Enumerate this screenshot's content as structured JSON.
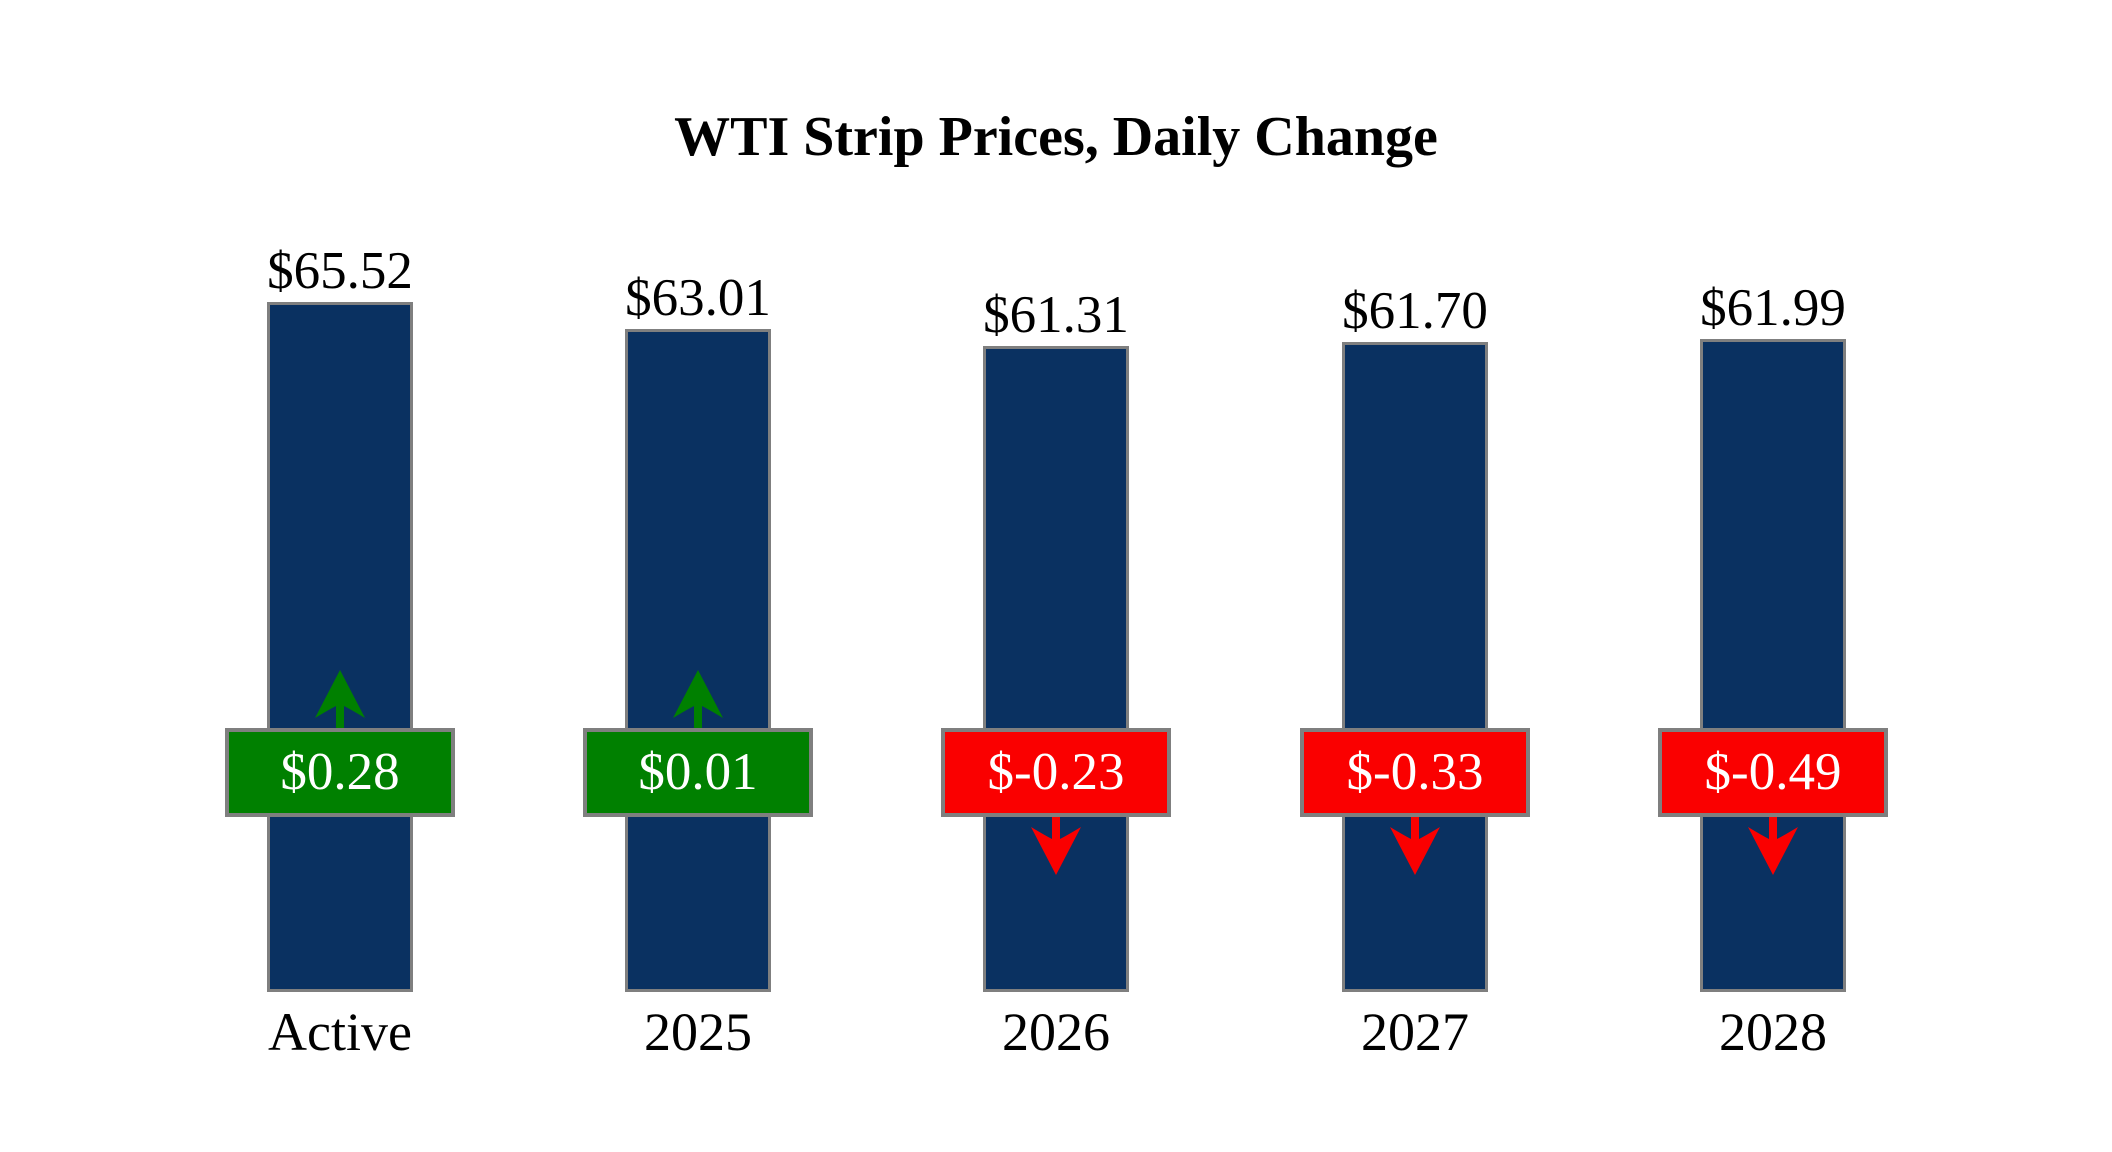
{
  "title": "WTI Strip Prices, Daily Change",
  "chart_data": {
    "type": "bar",
    "title": "WTI Strip Prices, Daily Change",
    "categories": [
      "Active",
      "2025",
      "2026",
      "2027",
      "2028"
    ],
    "series": [
      {
        "name": "WTI Strip Price",
        "values": [
          65.52,
          63.01,
          61.31,
          61.7,
          61.99
        ]
      },
      {
        "name": "Daily Change",
        "values": [
          0.28,
          0.01,
          -0.23,
          -0.33,
          -0.49
        ]
      }
    ],
    "bars": [
      {
        "category": "Active",
        "price": 65.52,
        "price_label": "$65.52",
        "change": 0.28,
        "change_label": "$0.28",
        "direction": "up"
      },
      {
        "category": "2025",
        "price": 63.01,
        "price_label": "$63.01",
        "change": 0.01,
        "change_label": "$0.01",
        "direction": "up"
      },
      {
        "category": "2026",
        "price": 61.31,
        "price_label": "$61.31",
        "change": -0.23,
        "change_label": "$-0.23",
        "direction": "down"
      },
      {
        "category": "2027",
        "price": 61.7,
        "price_label": "$61.70",
        "change": -0.33,
        "change_label": "$-0.33",
        "direction": "down"
      },
      {
        "category": "2028",
        "price": 61.99,
        "price_label": "$61.99",
        "change": -0.49,
        "change_label": "$-0.49",
        "direction": "down"
      }
    ],
    "ylim": [
      0,
      68
    ],
    "grid": false,
    "legend": "none",
    "colors": {
      "bar_fill": "#0A3161",
      "bar_border": "#7F7F7F",
      "positive_fill": "#008000",
      "negative_fill": "#FA0000",
      "box_border": "#7F7F7F",
      "box_text": "#FFFFFF",
      "label_text": "#000000",
      "background": "#FFFFFF"
    }
  }
}
